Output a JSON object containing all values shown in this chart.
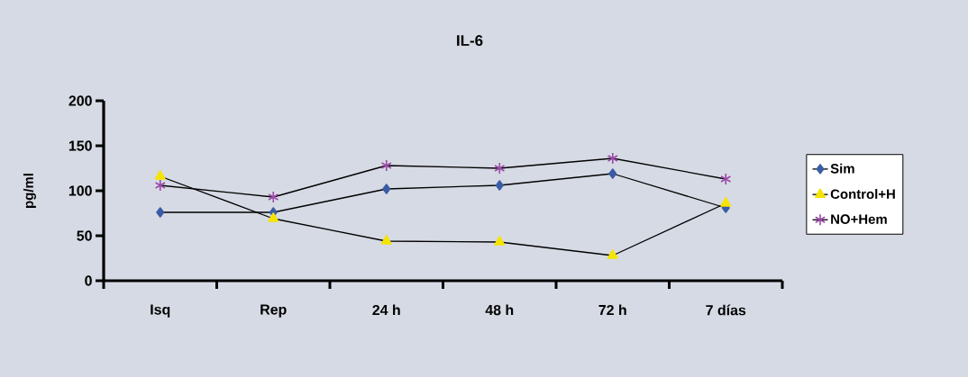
{
  "chart_data": {
    "type": "line",
    "title": "IL-6",
    "ylabel": "pg/ml",
    "categories": [
      "Isq",
      "Rep",
      "24 h",
      "48 h",
      "72 h",
      "7 días"
    ],
    "series": [
      {
        "name": "Sim",
        "color": "#3a5ca4",
        "marker": "diamond",
        "values": [
          76,
          76,
          102,
          106,
          119,
          81
        ]
      },
      {
        "name": "Control+H",
        "color": "#f5e400",
        "marker": "triangle",
        "values": [
          116,
          69,
          44,
          43,
          28,
          86
        ]
      },
      {
        "name": "NO+Hem",
        "color": "#9a4aa8",
        "marker": "cross",
        "values": [
          106,
          93,
          128,
          125,
          136,
          113
        ]
      }
    ],
    "ylim": [
      0,
      200
    ],
    "yticks": [
      0,
      50,
      100,
      150,
      200
    ],
    "grid": false,
    "legend": "right",
    "line_style": "solid"
  }
}
